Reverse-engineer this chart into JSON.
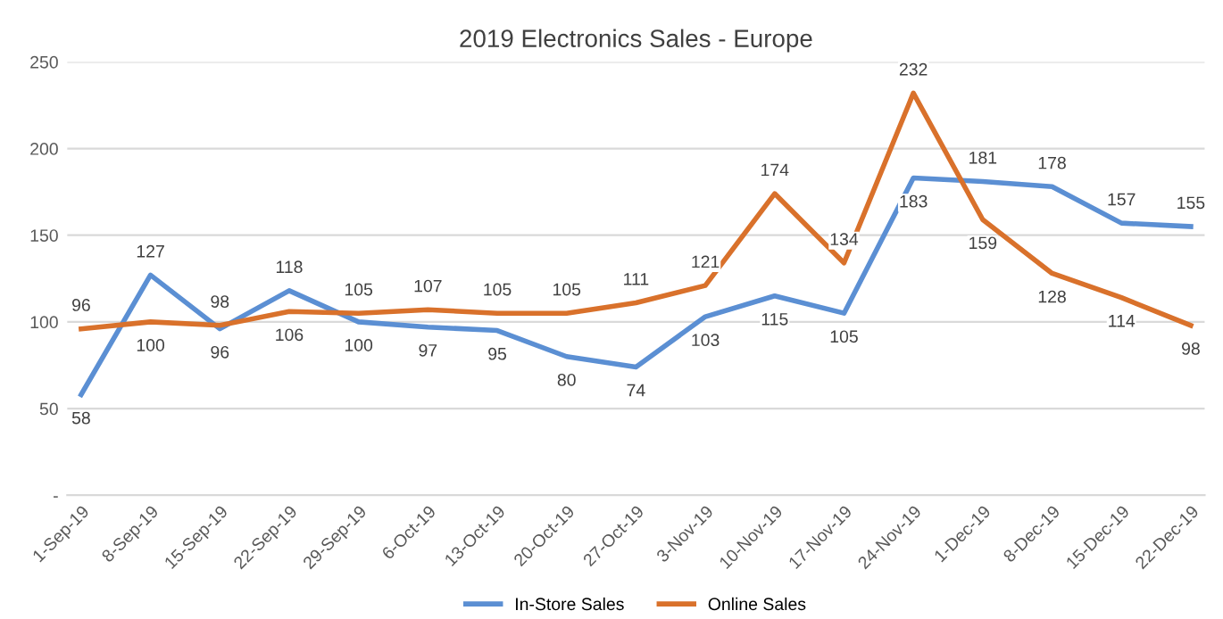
{
  "chart_data": {
    "type": "line",
    "title": "2019 Electronics Sales - Europe",
    "categories": [
      "1-Sep-19",
      "8-Sep-19",
      "15-Sep-19",
      "22-Sep-19",
      "29-Sep-19",
      "6-Oct-19",
      "13-Oct-19",
      "20-Oct-19",
      "27-Oct-19",
      "3-Nov-19",
      "10-Nov-19",
      "17-Nov-19",
      "24-Nov-19",
      "1-Dec-19",
      "8-Dec-19",
      "15-Dec-19",
      "22-Dec-19"
    ],
    "series": [
      {
        "name": "In-Store Sales",
        "color": "#5b8fd3",
        "values": [
          58,
          127,
          96,
          118,
          100,
          97,
          95,
          80,
          74,
          103,
          115,
          105,
          183,
          181,
          178,
          157,
          155
        ]
      },
      {
        "name": "Online Sales",
        "color": "#d9712b",
        "values": [
          96,
          100,
          98,
          106,
          105,
          107,
          105,
          105,
          111,
          121,
          174,
          134,
          232,
          159,
          128,
          114,
          98
        ]
      }
    ],
    "ylim": [
      0,
      250
    ],
    "yticks": [
      {
        "value": 0,
        "label": "-"
      },
      50,
      100,
      150,
      200,
      250
    ],
    "grid": "y",
    "legend": "bottom",
    "data_labels": true,
    "marker": "none",
    "line_style": "solid"
  }
}
